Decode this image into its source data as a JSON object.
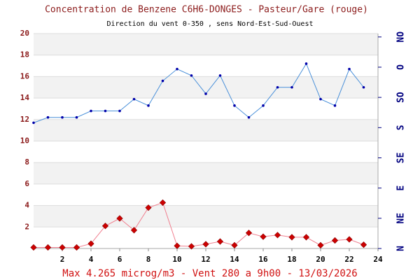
{
  "chart_data": {
    "type": "line",
    "title": "Concentration de Benzene C6H6-DONGES - Pasteur/Gare (rouge)",
    "subtitle": "Direction du vent 0-350 , sens Nord-Est-Sud-Ouest",
    "footer": "Max 4.265 microg/m3 - Vent 280  a 9h00 - 13/03/2026",
    "x": [
      0,
      1,
      2,
      3,
      4,
      5,
      6,
      7,
      8,
      9,
      10,
      11,
      12,
      13,
      14,
      15,
      16,
      17,
      18,
      19,
      20,
      21,
      22,
      23
    ],
    "xlim": [
      0,
      24
    ],
    "xticks": [
      2,
      4,
      6,
      8,
      10,
      12,
      14,
      16,
      18,
      20,
      22,
      24
    ],
    "ylim": [
      0,
      20
    ],
    "yticks": [
      2,
      4,
      6,
      8,
      10,
      12,
      14,
      16,
      18,
      20
    ],
    "y2lim": [
      0,
      320
    ],
    "y2ticks": [
      {
        "value": 0,
        "label": "N"
      },
      {
        "value": 45,
        "label": "NE"
      },
      {
        "value": 90,
        "label": "E"
      },
      {
        "value": 135,
        "label": "SE"
      },
      {
        "value": 180,
        "label": "S"
      },
      {
        "value": 225,
        "label": "SO"
      },
      {
        "value": 270,
        "label": "O"
      },
      {
        "value": 315,
        "label": "NO"
      }
    ],
    "grid": true,
    "series": [
      {
        "color": "#4a90d9",
        "marker": "#0000aa",
        "values": [
          11.7,
          12.2,
          12.2,
          12.2,
          12.8,
          12.8,
          12.8,
          13.9,
          13.3,
          15.6,
          16.7,
          16.1,
          14.4,
          16.1,
          13.3,
          12.2,
          13.3,
          15.0,
          15.0,
          17.2,
          13.9,
          13.3,
          16.7,
          15.0
        ]
      },
      {
        "color": "#f08090",
        "marker": "#cc0000",
        "values": [
          0.1,
          0.1,
          0.1,
          0.1,
          0.45,
          2.1,
          2.8,
          1.7,
          3.8,
          4.265,
          0.25,
          0.2,
          0.4,
          0.65,
          0.3,
          1.45,
          1.1,
          1.25,
          1.05,
          1.05,
          0.3,
          0.75,
          0.85,
          0.35
        ]
      }
    ]
  }
}
